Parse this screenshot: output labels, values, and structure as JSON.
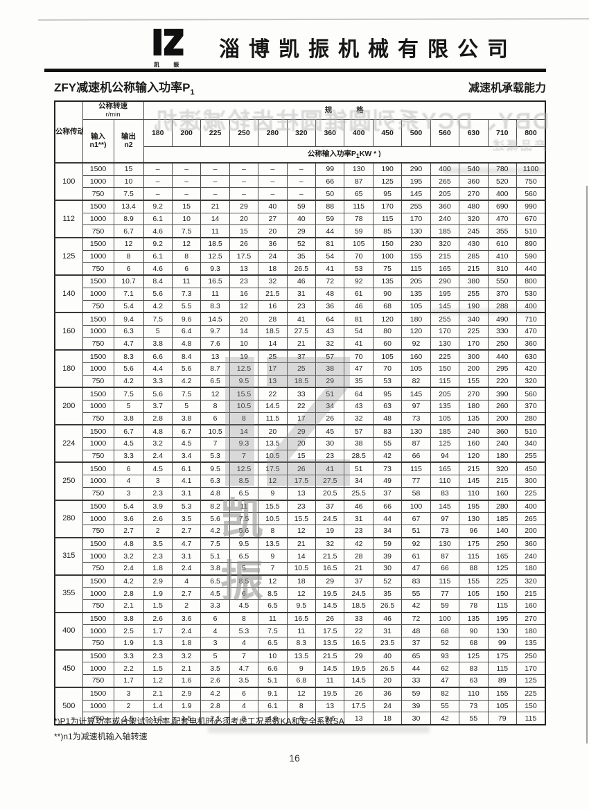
{
  "page": {
    "company": "淄博凯振机械有限公司",
    "logo_caption": "凯 振",
    "title_left_main": "ZFY减速机公称输入功率P",
    "title_left_sub": "1",
    "title_right": "减速机承载能力",
    "footnote1": "*)P1为计算功率或台架试验功率.配套电机时必须考虑工况系数KA和安全系数SA",
    "footnote2": "**)n1为减速机输入轴转速",
    "page_number": "16",
    "watermark_text": "凯 振"
  },
  "ghost": {
    "line1": "DBY、DCY系列圆锥圆柱齿轮减速机",
    "line2": "产品概述"
  },
  "table": {
    "corner_label": "公称传动比i",
    "speed_title": "公称转速",
    "speed_unit": "r/min",
    "input_label": "输入",
    "input_sub": "n1**)",
    "output_label": "输出",
    "output_sub": "n2",
    "spec_header": "规 格",
    "power_prefix": "公称输入功率P",
    "power_sub": "1",
    "power_suffix": "KW * )",
    "sizes": [
      "180",
      "200",
      "225",
      "250",
      "280",
      "320",
      "360",
      "400",
      "450",
      "500",
      "560",
      "630",
      "710",
      "800"
    ],
    "groups": [
      {
        "ratio": "100",
        "rows": [
          {
            "n1": "1500",
            "n2": "15",
            "v": [
              "–",
              "–",
              "–",
              "–",
              "–",
              "–",
              "99",
              "130",
              "190",
              "290",
              "400",
              "540",
              "780",
              "1100"
            ]
          },
          {
            "n1": "1000",
            "n2": "10",
            "v": [
              "–",
              "–",
              "–",
              "–",
              "–",
              "–",
              "66",
              "87",
              "125",
              "195",
              "265",
              "360",
              "520",
              "750"
            ]
          },
          {
            "n1": "750",
            "n2": "7.5",
            "v": [
              "–",
              "–",
              "–",
              "–",
              "–",
              "–",
              "50",
              "65",
              "95",
              "145",
              "205",
              "270",
              "400",
              "560"
            ]
          }
        ]
      },
      {
        "ratio": "112",
        "rows": [
          {
            "n1": "1500",
            "n2": "13.4",
            "v": [
              "9.2",
              "15",
              "21",
              "29",
              "40",
              "59",
              "88",
              "115",
              "170",
              "255",
              "360",
              "480",
              "690",
              "990"
            ]
          },
          {
            "n1": "1000",
            "n2": "8.9",
            "v": [
              "6.1",
              "10",
              "14",
              "20",
              "27",
              "40",
              "59",
              "78",
              "115",
              "170",
              "240",
              "320",
              "470",
              "670"
            ]
          },
          {
            "n1": "750",
            "n2": "6.7",
            "v": [
              "4.6",
              "7.5",
              "11",
              "15",
              "20",
              "29",
              "44",
              "59",
              "85",
              "130",
              "185",
              "245",
              "355",
              "510"
            ]
          }
        ]
      },
      {
        "ratio": "125",
        "rows": [
          {
            "n1": "1500",
            "n2": "12",
            "v": [
              "9.2",
              "12",
              "18.5",
              "26",
              "36",
              "52",
              "81",
              "105",
              "150",
              "230",
              "320",
              "430",
              "610",
              "890"
            ]
          },
          {
            "n1": "1000",
            "n2": "8",
            "v": [
              "6.1",
              "8",
              "12.5",
              "17.5",
              "24",
              "35",
              "54",
              "70",
              "100",
              "155",
              "215",
              "285",
              "410",
              "590"
            ]
          },
          {
            "n1": "750",
            "n2": "6",
            "v": [
              "4.6",
              "6",
              "9.3",
              "13",
              "18",
              "26.5",
              "41",
              "53",
              "75",
              "115",
              "165",
              "215",
              "310",
              "440"
            ]
          }
        ]
      },
      {
        "ratio": "140",
        "rows": [
          {
            "n1": "1500",
            "n2": "10.7",
            "v": [
              "8.4",
              "11",
              "16.5",
              "23",
              "32",
              "46",
              "72",
              "92",
              "135",
              "205",
              "290",
              "380",
              "550",
              "800"
            ]
          },
          {
            "n1": "1000",
            "n2": "7.1",
            "v": [
              "5.6",
              "7.3",
              "11",
              "16",
              "21.5",
              "31",
              "48",
              "61",
              "90",
              "135",
              "195",
              "255",
              "370",
              "530"
            ]
          },
          {
            "n1": "750",
            "n2": "5.4",
            "v": [
              "4.2",
              "5.5",
              "8.3",
              "12",
              "16",
              "23",
              "36",
              "46",
              "68",
              "105",
              "145",
              "190",
              "288",
              "400"
            ]
          }
        ]
      },
      {
        "ratio": "160",
        "rows": [
          {
            "n1": "1500",
            "n2": "9.4",
            "v": [
              "7.5",
              "9.6",
              "14.5",
              "20",
              "28",
              "41",
              "64",
              "81",
              "120",
              "180",
              "255",
              "340",
              "490",
              "710"
            ]
          },
          {
            "n1": "1000",
            "n2": "6.3",
            "v": [
              "5",
              "6.4",
              "9.7",
              "14",
              "18.5",
              "27.5",
              "43",
              "54",
              "80",
              "120",
              "170",
              "225",
              "330",
              "470"
            ]
          },
          {
            "n1": "750",
            "n2": "4.7",
            "v": [
              "3.8",
              "4.8",
              "7.6",
              "10",
              "14",
              "21",
              "32",
              "41",
              "60",
              "92",
              "130",
              "170",
              "250",
              "360"
            ]
          }
        ]
      },
      {
        "ratio": "180",
        "rows": [
          {
            "n1": "1500",
            "n2": "8.3",
            "v": [
              "6.6",
              "8.4",
              "13",
              "19",
              "25",
              "37",
              "57",
              "70",
              "105",
              "160",
              "225",
              "300",
              "440",
              "630"
            ]
          },
          {
            "n1": "1000",
            "n2": "5.6",
            "v": [
              "4.4",
              "5.6",
              "8.7",
              "12.5",
              "17",
              "25",
              "38",
              "47",
              "70",
              "105",
              "150",
              "200",
              "295",
              "420"
            ]
          },
          {
            "n1": "750",
            "n2": "4.2",
            "v": [
              "3.3",
              "4.2",
              "6.5",
              "9.5",
              "13",
              "18.5",
              "29",
              "35",
              "53",
              "82",
              "115",
              "155",
              "220",
              "320"
            ]
          }
        ]
      },
      {
        "ratio": "200",
        "rows": [
          {
            "n1": "1500",
            "n2": "7.5",
            "v": [
              "5.6",
              "7.5",
              "12",
              "15.5",
              "22",
              "33",
              "51",
              "64",
              "95",
              "145",
              "205",
              "270",
              "390",
              "560"
            ]
          },
          {
            "n1": "1000",
            "n2": "5",
            "v": [
              "3.7",
              "5",
              "8",
              "10.5",
              "14.5",
              "22",
              "34",
              "43",
              "63",
              "97",
              "135",
              "180",
              "260",
              "370"
            ]
          },
          {
            "n1": "750",
            "n2": "3.8",
            "v": [
              "2.8",
              "3.8",
              "6",
              "8",
              "11.5",
              "17",
              "26",
              "32",
              "48",
              "73",
              "105",
              "135",
              "200",
              "280"
            ]
          }
        ]
      },
      {
        "ratio": "224",
        "rows": [
          {
            "n1": "1500",
            "n2": "6.7",
            "v": [
              "4.8",
              "6.7",
              "10.5",
              "14",
              "20",
              "29",
              "45",
              "57",
              "83",
              "130",
              "185",
              "240",
              "360",
              "510"
            ]
          },
          {
            "n1": "1000",
            "n2": "4.5",
            "v": [
              "3.2",
              "4.5",
              "7",
              "9.3",
              "13.5",
              "20",
              "30",
              "38",
              "55",
              "87",
              "125",
              "160",
              "240",
              "340"
            ]
          },
          {
            "n1": "750",
            "n2": "3.3",
            "v": [
              "2.4",
              "3.4",
              "5.3",
              "7",
              "10.5",
              "15",
              "23",
              "28.5",
              "42",
              "66",
              "94",
              "120",
              "180",
              "255"
            ]
          }
        ]
      },
      {
        "ratio": "250",
        "rows": [
          {
            "n1": "1500",
            "n2": "6",
            "v": [
              "4.5",
              "6.1",
              "9.5",
              "12.5",
              "17.5",
              "26",
              "41",
              "51",
              "73",
              "115",
              "165",
              "215",
              "320",
              "450"
            ]
          },
          {
            "n1": "1000",
            "n2": "4",
            "v": [
              "3",
              "4.1",
              "6.3",
              "8.5",
              "12",
              "17.5",
              "27.5",
              "34",
              "49",
              "77",
              "110",
              "145",
              "215",
              "300"
            ]
          },
          {
            "n1": "750",
            "n2": "3",
            "v": [
              "2.3",
              "3.1",
              "4.8",
              "6.5",
              "9",
              "13",
              "20.5",
              "25.5",
              "37",
              "58",
              "83",
              "110",
              "160",
              "225"
            ]
          }
        ]
      },
      {
        "ratio": "280",
        "rows": [
          {
            "n1": "1500",
            "n2": "5.4",
            "v": [
              "3.9",
              "5.3",
              "8.2",
              "11",
              "15.5",
              "23",
              "37",
              "46",
              "66",
              "100",
              "145",
              "195",
              "280",
              "400"
            ]
          },
          {
            "n1": "1000",
            "n2": "3.6",
            "v": [
              "2.6",
              "3.5",
              "5.6",
              "7.5",
              "10.5",
              "15.5",
              "24.5",
              "31",
              "44",
              "67",
              "97",
              "130",
              "185",
              "265"
            ]
          },
          {
            "n1": "750",
            "n2": "2.7",
            "v": [
              "2",
              "2.7",
              "4.2",
              "5.6",
              "8",
              "12",
              "19",
              "23",
              "34",
              "51",
              "73",
              "96",
              "140",
              "200"
            ]
          }
        ]
      },
      {
        "ratio": "315",
        "rows": [
          {
            "n1": "1500",
            "n2": "4.8",
            "v": [
              "3.5",
              "4.7",
              "7.5",
              "9.5",
              "13.5",
              "21",
              "32",
              "42",
              "59",
              "92",
              "130",
              "175",
              "250",
              "360"
            ]
          },
          {
            "n1": "1000",
            "n2": "3.2",
            "v": [
              "2.3",
              "3.1",
              "5.1",
              "6.5",
              "9",
              "14",
              "21.5",
              "28",
              "39",
              "61",
              "87",
              "115",
              "165",
              "240"
            ]
          },
          {
            "n1": "750",
            "n2": "2.4",
            "v": [
              "1.8",
              "2.4",
              "3.8",
              "5",
              "7",
              "10.5",
              "16.5",
              "21",
              "30",
              "47",
              "66",
              "88",
              "125",
              "180"
            ]
          }
        ]
      },
      {
        "ratio": "355",
        "rows": [
          {
            "n1": "1500",
            "n2": "4.2",
            "v": [
              "2.9",
              "4",
              "6.5",
              "8.5",
              "12",
              "18",
              "29",
              "37",
              "52",
              "83",
              "115",
              "155",
              "225",
              "320"
            ]
          },
          {
            "n1": "1000",
            "n2": "2.8",
            "v": [
              "1.9",
              "2.7",
              "4.5",
              "6",
              "8.5",
              "12",
              "19.5",
              "24.5",
              "35",
              "55",
              "77",
              "105",
              "150",
              "215"
            ]
          },
          {
            "n1": "750",
            "n2": "2.1",
            "v": [
              "1.5",
              "2",
              "3.3",
              "4.5",
              "6.5",
              "9.5",
              "14.5",
              "18.5",
              "26.5",
              "42",
              "59",
              "78",
              "115",
              "160"
            ]
          }
        ]
      },
      {
        "ratio": "400",
        "rows": [
          {
            "n1": "1500",
            "n2": "3.8",
            "v": [
              "2.6",
              "3.6",
              "6",
              "8",
              "11",
              "16.5",
              "26",
              "33",
              "46",
              "72",
              "100",
              "135",
              "195",
              "270"
            ]
          },
          {
            "n1": "1000",
            "n2": "2.5",
            "v": [
              "1.7",
              "2.4",
              "4",
              "5.3",
              "7.5",
              "11",
              "17.5",
              "22",
              "31",
              "48",
              "68",
              "90",
              "130",
              "180"
            ]
          },
          {
            "n1": "750",
            "n2": "1.9",
            "v": [
              "1.3",
              "1.8",
              "3",
              "4",
              "6.5",
              "8.3",
              "13.5",
              "16.5",
              "23.5",
              "37",
              "52",
              "68",
              "99",
              "135"
            ]
          }
        ]
      },
      {
        "ratio": "450",
        "rows": [
          {
            "n1": "1500",
            "n2": "3.3",
            "v": [
              "2.3",
              "3.2",
              "5",
              "7",
              "10",
              "13.5",
              "21.5",
              "29",
              "40",
              "65",
              "93",
              "125",
              "175",
              "250"
            ]
          },
          {
            "n1": "1000",
            "n2": "2.2",
            "v": [
              "1.5",
              "2.1",
              "3.5",
              "4.7",
              "6.6",
              "9",
              "14.5",
              "19.5",
              "26.5",
              "44",
              "62",
              "83",
              "115",
              "170"
            ]
          },
          {
            "n1": "750",
            "n2": "1.7",
            "v": [
              "1.2",
              "1.6",
              "2.6",
              "3.5",
              "5.1",
              "6.8",
              "11",
              "14.5",
              "20",
              "33",
              "47",
              "63",
              "89",
              "125"
            ]
          }
        ]
      },
      {
        "ratio": "500",
        "rows": [
          {
            "n1": "1500",
            "n2": "3",
            "v": [
              "2.1",
              "2.9",
              "4.2",
              "6",
              "9.1",
              "12",
              "19.5",
              "26",
              "36",
              "59",
              "82",
              "110",
              "155",
              "225"
            ]
          },
          {
            "n1": "1000",
            "n2": "2",
            "v": [
              "1.4",
              "1.9",
              "2.8",
              "4",
              "6.1",
              "8",
              "13",
              "17.5",
              "24",
              "39",
              "55",
              "73",
              "105",
              "150"
            ]
          },
          {
            "n1": "750",
            "n2": "1.5",
            "v": [
              "1.1",
              "1.5",
              "2.1",
              "3",
              "4.6",
              "6",
              "9.6",
              "13",
              "18",
              "30",
              "42",
              "55",
              "79",
              "115"
            ]
          }
        ]
      }
    ]
  }
}
